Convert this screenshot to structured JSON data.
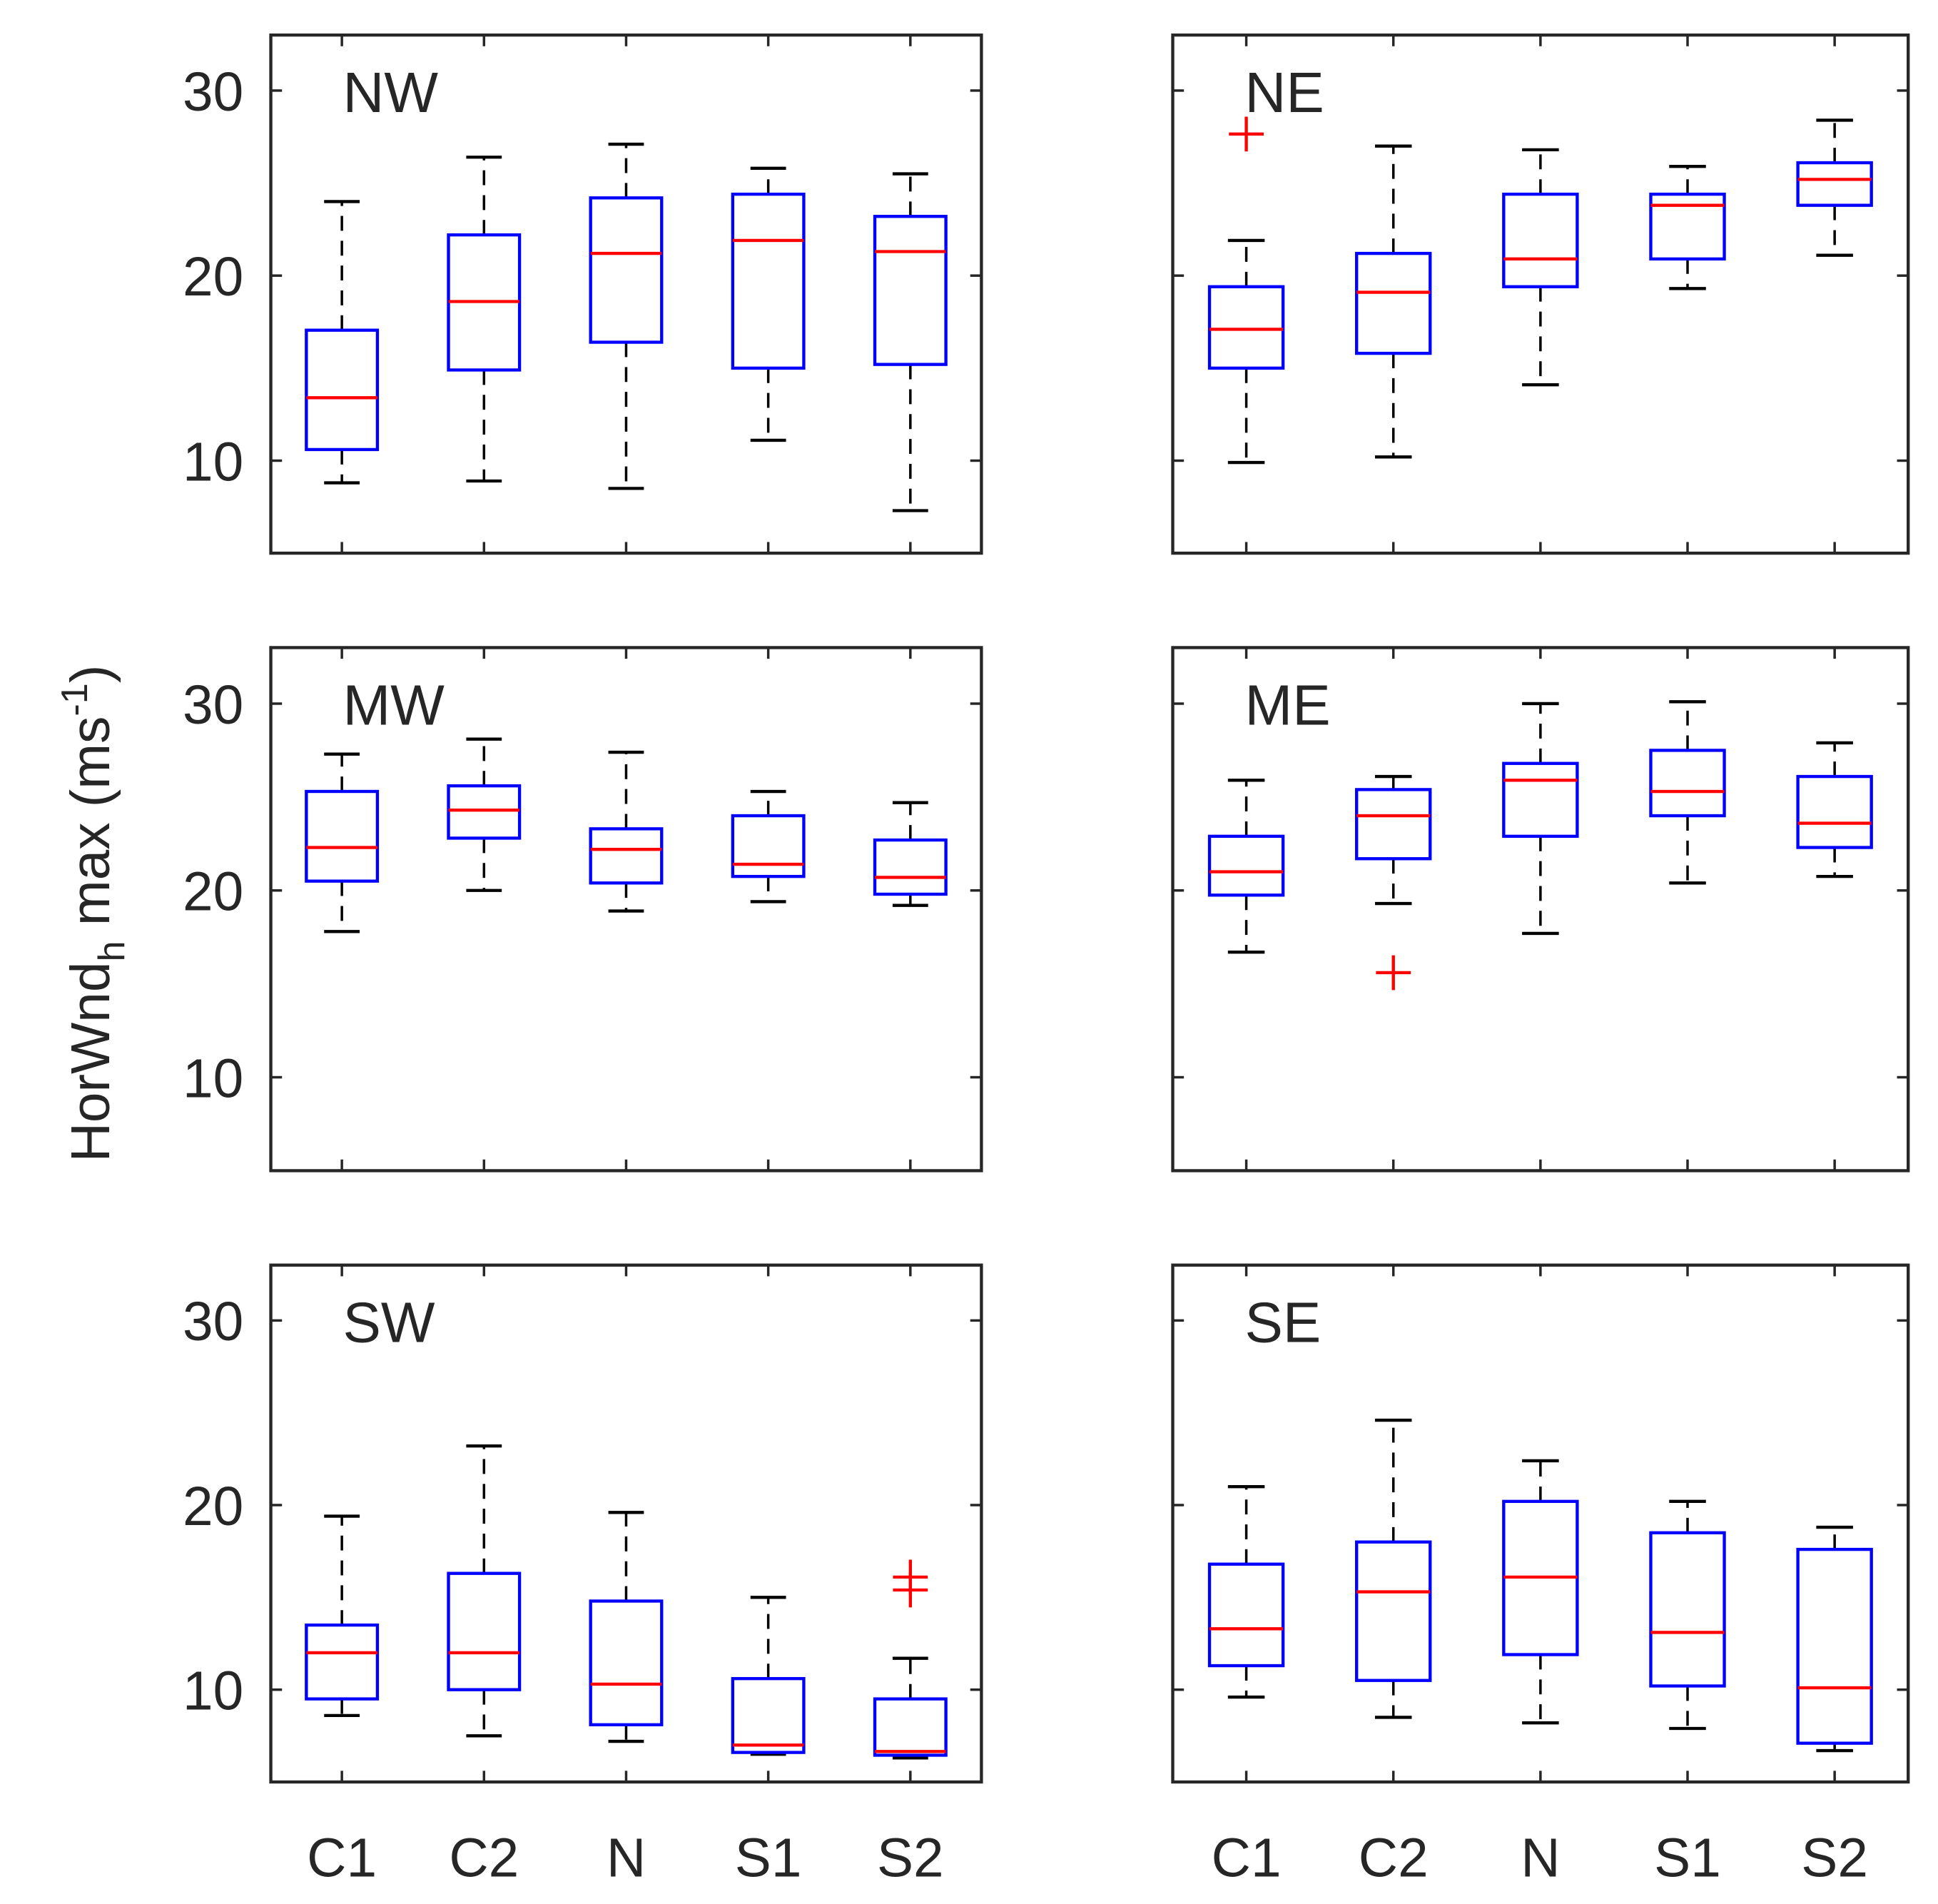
{
  "chart_data": {
    "type": "boxplot",
    "ylabel": {
      "main": "HorWnd",
      "sub": "h",
      "rest": " max (ms",
      "sup": "-1",
      "close": ")"
    },
    "ylim": [
      5,
      33
    ],
    "yticks": [
      10,
      20,
      30
    ],
    "categories": [
      "C1",
      "C2",
      "N",
      "S1",
      "S2"
    ],
    "colors": {
      "box": "#0000ff",
      "median": "#ff0000",
      "whisker": "#000000",
      "outlier": "#ff0000",
      "axis": "#262626"
    },
    "panels": [
      {
        "title": "NW",
        "boxes": [
          {
            "low": 8.8,
            "q1": 10.6,
            "median": 13.4,
            "q3": 17.05,
            "high": 24.0,
            "outliers": []
          },
          {
            "low": 8.9,
            "q1": 14.9,
            "median": 18.6,
            "q3": 22.2,
            "high": 26.4,
            "outliers": []
          },
          {
            "low": 8.5,
            "q1": 16.4,
            "median": 21.2,
            "q3": 24.2,
            "high": 27.1,
            "outliers": []
          },
          {
            "low": 11.1,
            "q1": 15.0,
            "median": 21.9,
            "q3": 24.4,
            "high": 25.8,
            "outliers": []
          },
          {
            "low": 7.3,
            "q1": 15.2,
            "median": 21.3,
            "q3": 23.2,
            "high": 25.5,
            "outliers": []
          }
        ]
      },
      {
        "title": "NE",
        "boxes": [
          {
            "low": 9.9,
            "q1": 15.0,
            "median": 17.1,
            "q3": 19.4,
            "high": 21.9,
            "outliers": [
              27.65
            ]
          },
          {
            "low": 10.2,
            "q1": 15.8,
            "median": 19.1,
            "q3": 21.2,
            "high": 27.0,
            "outliers": []
          },
          {
            "low": 14.1,
            "q1": 19.4,
            "median": 20.9,
            "q3": 24.4,
            "high": 26.8,
            "outliers": []
          },
          {
            "low": 19.3,
            "q1": 20.9,
            "median": 23.8,
            "q3": 24.4,
            "high": 25.9,
            "outliers": []
          },
          {
            "low": 21.1,
            "q1": 23.8,
            "median": 25.2,
            "q3": 26.1,
            "high": 28.4,
            "outliers": []
          }
        ]
      },
      {
        "title": "MW",
        "boxes": [
          {
            "low": 17.8,
            "q1": 20.5,
            "median": 22.3,
            "q3": 25.3,
            "high": 27.3,
            "outliers": []
          },
          {
            "low": 20.0,
            "q1": 22.8,
            "median": 24.3,
            "q3": 25.6,
            "high": 28.1,
            "outliers": []
          },
          {
            "low": 18.9,
            "q1": 20.4,
            "median": 22.2,
            "q3": 23.3,
            "high": 27.4,
            "outliers": []
          },
          {
            "low": 19.4,
            "q1": 20.75,
            "median": 21.4,
            "q3": 24.0,
            "high": 25.3,
            "outliers": []
          },
          {
            "low": 19.2,
            "q1": 19.8,
            "median": 20.7,
            "q3": 22.7,
            "high": 24.7,
            "outliers": []
          }
        ]
      },
      {
        "title": "ME",
        "boxes": [
          {
            "low": 16.7,
            "q1": 19.75,
            "median": 21.0,
            "q3": 22.9,
            "high": 25.9,
            "outliers": []
          },
          {
            "low": 19.3,
            "q1": 21.7,
            "median": 24.0,
            "q3": 25.4,
            "high": 26.1,
            "outliers": [
              15.6
            ]
          },
          {
            "low": 17.7,
            "q1": 22.9,
            "median": 25.9,
            "q3": 26.8,
            "high": 30.0,
            "outliers": []
          },
          {
            "low": 20.4,
            "q1": 24.0,
            "median": 25.3,
            "q3": 27.5,
            "high": 30.1,
            "outliers": []
          },
          {
            "low": 20.75,
            "q1": 22.3,
            "median": 23.6,
            "q3": 26.1,
            "high": 27.9,
            "outliers": []
          }
        ]
      },
      {
        "title": "SW",
        "boxes": [
          {
            "low": 8.6,
            "q1": 9.5,
            "median": 12.0,
            "q3": 13.5,
            "high": 19.4,
            "outliers": []
          },
          {
            "low": 7.5,
            "q1": 10.0,
            "median": 12.0,
            "q3": 16.3,
            "high": 23.2,
            "outliers": []
          },
          {
            "low": 7.2,
            "q1": 8.1,
            "median": 10.3,
            "q3": 14.8,
            "high": 19.6,
            "outliers": []
          },
          {
            "low": 6.5,
            "q1": 6.6,
            "median": 7.0,
            "q3": 10.6,
            "high": 15.0,
            "outliers": []
          },
          {
            "low": 6.3,
            "q1": 6.45,
            "median": 6.65,
            "q3": 9.5,
            "high": 11.7,
            "outliers": [
              16.1,
              15.4
            ]
          }
        ]
      },
      {
        "title": "SE",
        "boxes": [
          {
            "low": 9.6,
            "q1": 11.3,
            "median": 13.3,
            "q3": 16.8,
            "high": 21.0,
            "outliers": []
          },
          {
            "low": 8.5,
            "q1": 10.5,
            "median": 15.3,
            "q3": 18.0,
            "high": 24.6,
            "outliers": []
          },
          {
            "low": 8.2,
            "q1": 11.9,
            "median": 16.1,
            "q3": 20.2,
            "high": 22.4,
            "outliers": []
          },
          {
            "low": 7.9,
            "q1": 10.2,
            "median": 13.1,
            "q3": 18.5,
            "high": 20.2,
            "outliers": []
          },
          {
            "low": 6.7,
            "q1": 7.1,
            "median": 10.1,
            "q3": 17.6,
            "high": 18.8,
            "outliers": []
          }
        ]
      }
    ]
  }
}
